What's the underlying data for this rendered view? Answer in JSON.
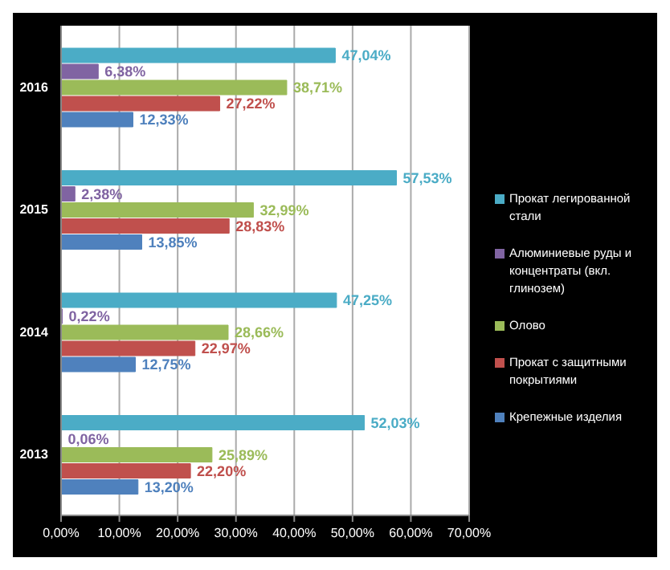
{
  "chart_data": {
    "type": "bar",
    "orientation": "horizontal",
    "categories": [
      "2016",
      "2015",
      "2014",
      "2013"
    ],
    "series": [
      {
        "name": "Прокат легированной стали",
        "color": "#4bacc6",
        "values": [
          47.04,
          57.53,
          47.25,
          52.03
        ],
        "value_labels": [
          "47,04%",
          "57,53%",
          "47,25%",
          "52,03%"
        ]
      },
      {
        "name": "Алюминиевые руды и концентраты (вкл. глинозем)",
        "color": "#8064a2",
        "values": [
          6.38,
          2.38,
          0.22,
          0.06
        ],
        "value_labels": [
          "6,38%",
          "2,38%",
          "0,22%",
          "0,06%"
        ]
      },
      {
        "name": "Олово",
        "color": "#9bbb59",
        "values": [
          38.71,
          32.99,
          28.66,
          25.89
        ],
        "value_labels": [
          "38,71%",
          "32,99%",
          "28,66%",
          "25,89%"
        ]
      },
      {
        "name": "Прокат с защитными покрытиями",
        "color": "#c0504d",
        "values": [
          27.22,
          28.83,
          22.97,
          22.2
        ],
        "value_labels": [
          "27,22%",
          "28,83%",
          "22,97%",
          "22,20%"
        ]
      },
      {
        "name": "Крепежные изделия",
        "color": "#4f81bd",
        "values": [
          12.33,
          13.85,
          12.75,
          13.2
        ],
        "value_labels": [
          "12,33%",
          "13,85%",
          "12,75%",
          "13,20%"
        ]
      }
    ],
    "xlim": [
      0,
      70
    ],
    "xticks": [
      {
        "value": 0,
        "label": "0,00%"
      },
      {
        "value": 10,
        "label": "10,00%"
      },
      {
        "value": 20,
        "label": "20,00%"
      },
      {
        "value": 30,
        "label": "30,00%"
      },
      {
        "value": 40,
        "label": "40,00%"
      },
      {
        "value": 50,
        "label": "50,00%"
      },
      {
        "value": 60,
        "label": "60,00%"
      },
      {
        "value": 70,
        "label": "70,00%"
      }
    ],
    "grid": "x",
    "legend": "right"
  }
}
